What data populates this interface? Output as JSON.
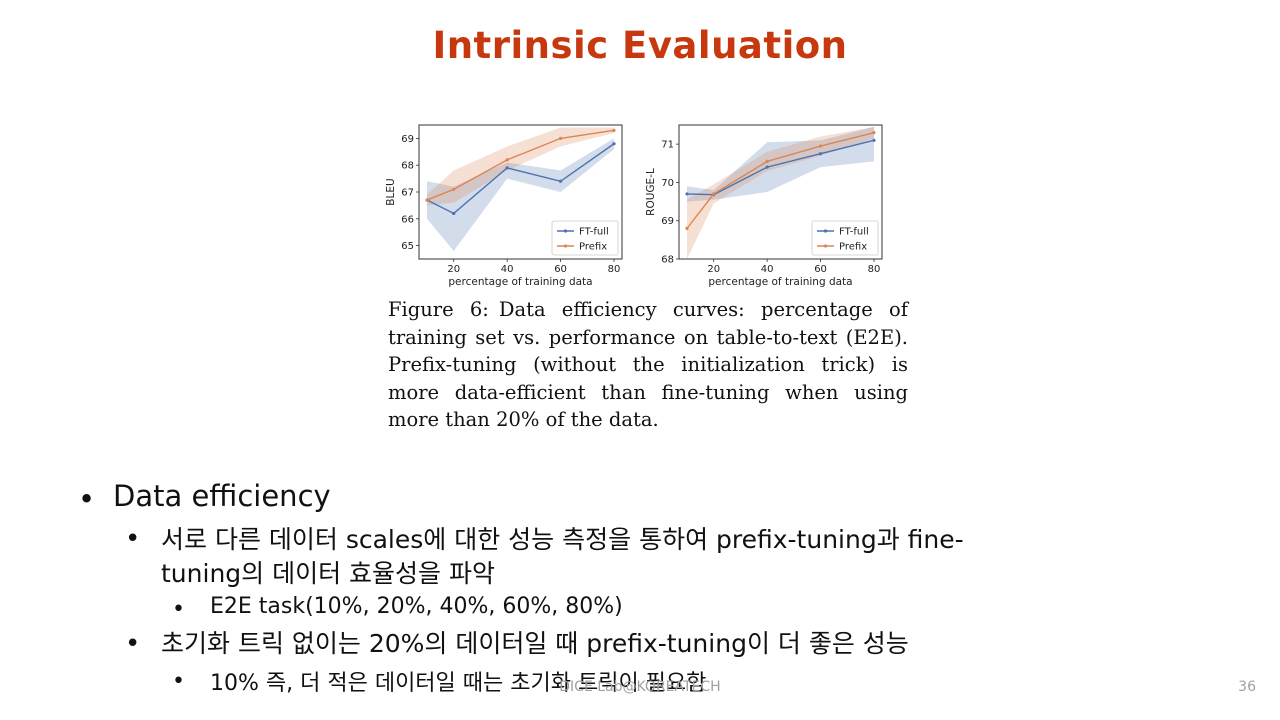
{
  "slide": {
    "title": "Intrinsic Evaluation",
    "footer": "DICE Lab@KOREATECH",
    "page_number": "36"
  },
  "figure": {
    "caption_label": "Figure 6:",
    "caption_text": "Data efficiency curves: percentage of training set vs. performance on table-to-text (E2E). Prefix-tuning (without the initialization trick) is more data-efficient than fine-tuning when using more than 20% of the data."
  },
  "bullets": {
    "l1_0": "Data efficiency",
    "l2_0a": "서로 다른 데이터 scales에 대한 성능 측정을 통하여 prefix-tuning과 fine-",
    "l2_0b": "tuning의 데이터 효율성을 파악",
    "l3_0": "E2E task(10%, 20%, 40%, 60%, 80%)",
    "l2_1": "초기화 트릭 없이는 20%의 데이터일 때 prefix-tuning이 더 좋은 성능",
    "l3_1": "10% 즉, 더 적은 데이터일 때는 초기화 트릭이 필요함"
  },
  "colors": {
    "title": "#c8380e",
    "ft_full": "#4c72b0",
    "prefix": "#dd8452"
  },
  "chart_data": [
    {
      "type": "line",
      "xlabel": "percentage of training data",
      "ylabel": "BLEU",
      "x": [
        10,
        20,
        40,
        60,
        80
      ],
      "xlim": [
        7,
        83
      ],
      "ylim": [
        64.5,
        69.5
      ],
      "xticks": [
        20,
        40,
        60,
        80
      ],
      "yticks": [
        65,
        66,
        67,
        68,
        69
      ],
      "legend": "bottom-right",
      "series": [
        {
          "name": "FT-full",
          "values": [
            66.7,
            66.2,
            67.9,
            67.4,
            68.8
          ],
          "lower": [
            66.0,
            64.8,
            67.5,
            67.0,
            68.6
          ],
          "upper": [
            67.4,
            67.2,
            68.1,
            67.8,
            69.0
          ]
        },
        {
          "name": "Prefix",
          "values": [
            66.7,
            67.1,
            68.2,
            69.0,
            69.3
          ],
          "lower": [
            66.5,
            66.6,
            67.8,
            68.7,
            69.2
          ],
          "upper": [
            66.9,
            67.8,
            68.7,
            69.4,
            69.4
          ]
        }
      ]
    },
    {
      "type": "line",
      "xlabel": "percentage of training data",
      "ylabel": "ROUGE-L",
      "x": [
        10,
        20,
        40,
        60,
        80
      ],
      "xlim": [
        7,
        83
      ],
      "ylim": [
        68.0,
        71.5
      ],
      "xticks": [
        20,
        40,
        60,
        80
      ],
      "yticks": [
        68,
        69,
        70,
        71
      ],
      "legend": "bottom-right",
      "series": [
        {
          "name": "FT-full",
          "values": [
            69.7,
            69.68,
            70.4,
            70.75,
            71.1
          ],
          "lower": [
            69.5,
            69.55,
            69.75,
            70.4,
            70.55
          ],
          "upper": [
            69.9,
            69.8,
            71.05,
            71.1,
            71.45
          ]
        },
        {
          "name": "Prefix",
          "values": [
            68.8,
            69.7,
            70.55,
            70.95,
            71.3
          ],
          "lower": [
            68.0,
            69.45,
            70.3,
            70.7,
            71.15
          ],
          "upper": [
            69.55,
            69.95,
            70.8,
            71.2,
            71.45
          ]
        }
      ]
    }
  ]
}
